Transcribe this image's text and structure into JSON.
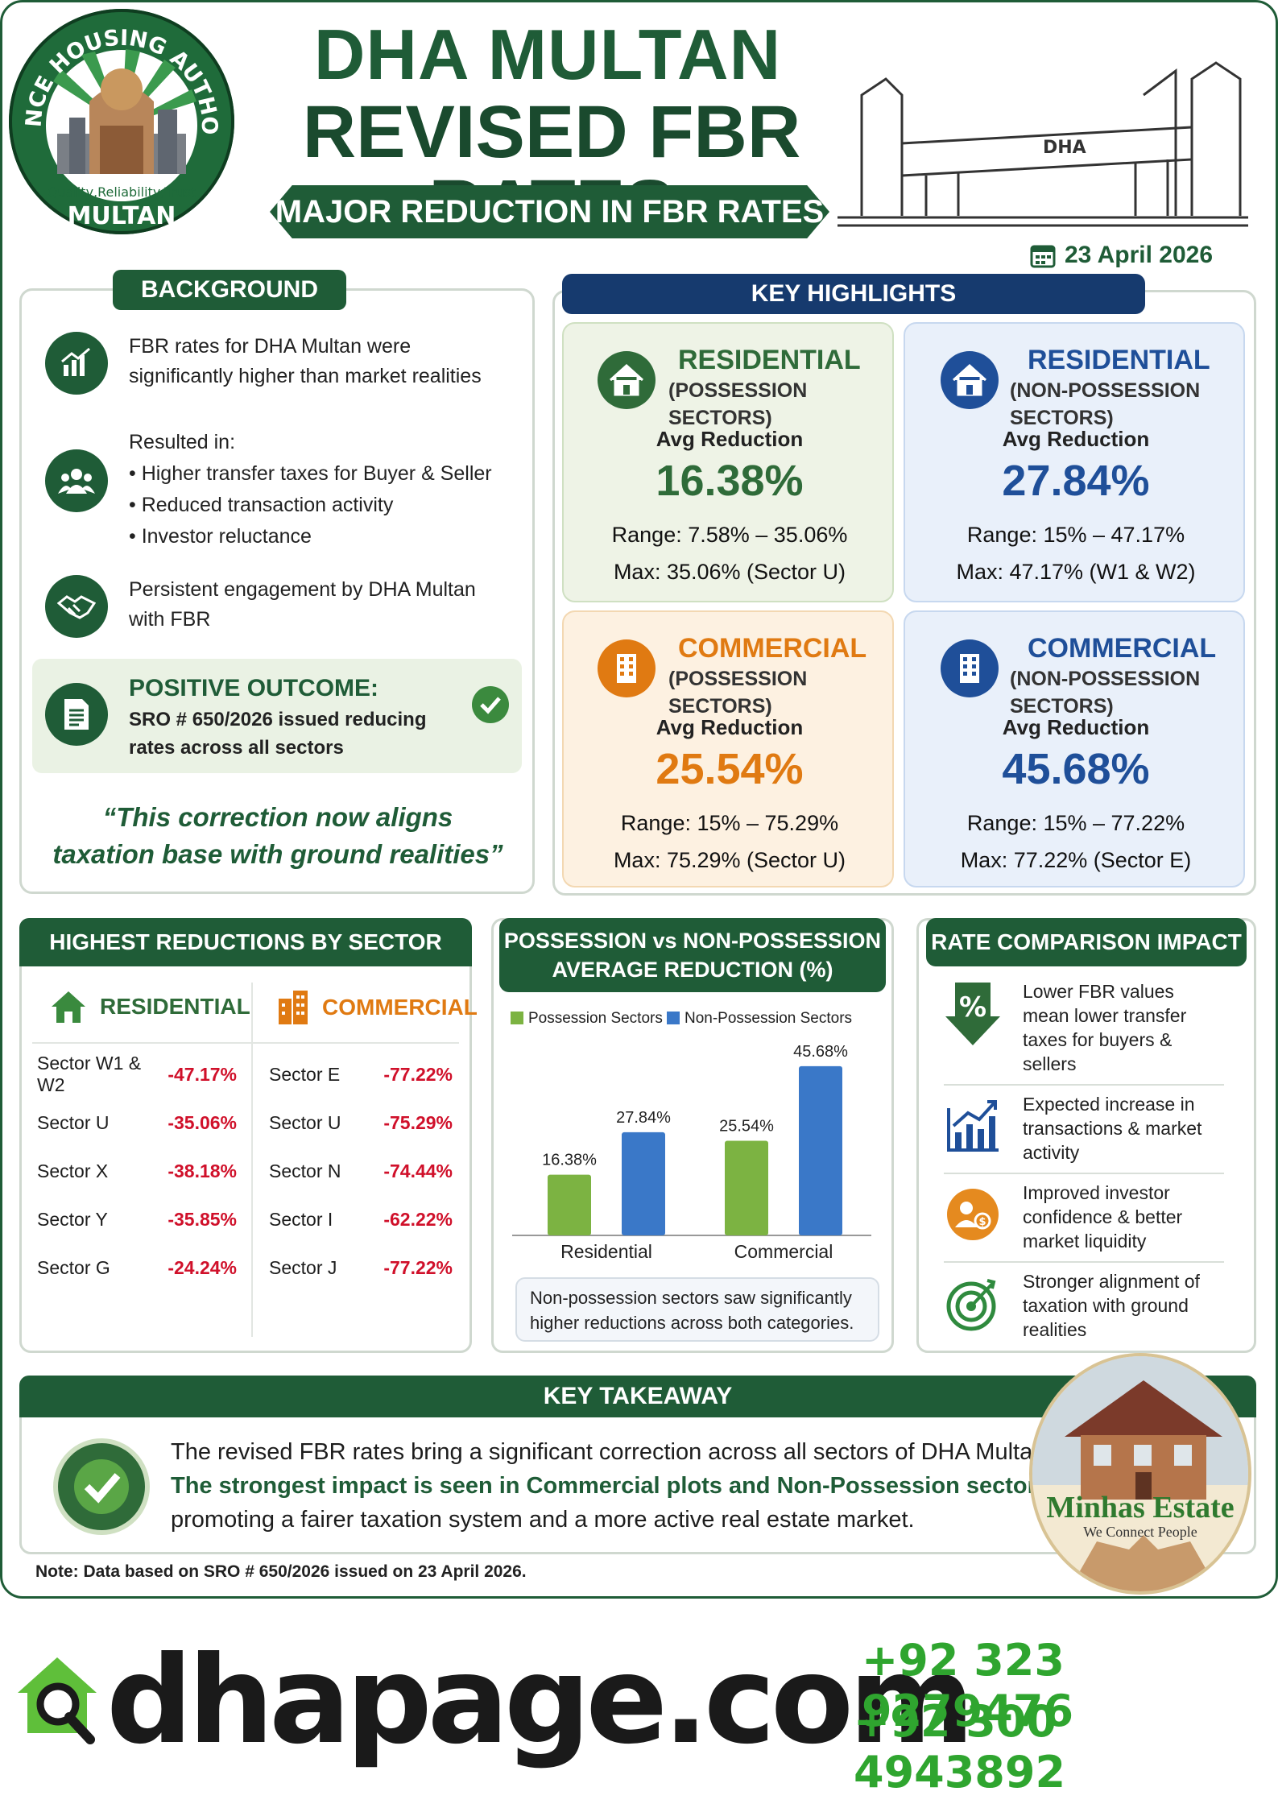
{
  "header": {
    "title_line1": "DHA MULTAN",
    "title_line2": "REVISED FBR RATES",
    "ribbon": "MAJOR REDUCTION IN FBR RATES",
    "date": "23 April 2026",
    "logo_text_top": "DEFENCE HOUSING AUTHORITY",
    "logo_text_bottom": "MULTAN",
    "logo_tagline": "Quality,Reliability,Trust",
    "gate_sign": "DHA"
  },
  "background": {
    "title": "BACKGROUND",
    "item1": "FBR rates for DHA Multan were significantly higher than market realities",
    "item2_intro": "Resulted in:",
    "item2_bullets": [
      "Higher transfer taxes for Buyer & Seller",
      "Reduced transaction activity",
      "Investor reluctance"
    ],
    "item3": "Persistent engagement by DHA Multan with FBR",
    "outcome_title": "POSITIVE OUTCOME:",
    "outcome_text": "SRO # 650/2026 issued reducing rates across all sectors",
    "quote": "“This correction now aligns taxation base with ground realities”"
  },
  "highlights": {
    "title": "KEY HIGHLIGHTS",
    "cards": [
      {
        "title": "RESIDENTIAL",
        "subtitle": "(POSSESSION SECTORS)",
        "avg_label": "Avg Reduction",
        "avg": "16.38%",
        "range": "Range: 7.58% – 35.06%",
        "max": "Max: 35.06% (Sector U)",
        "color": "#2f6b39"
      },
      {
        "title": "RESIDENTIAL",
        "subtitle": "(NON-POSSESSION SECTORS)",
        "avg_label": "Avg Reduction",
        "avg": "27.84%",
        "range": "Range: 15% – 47.17%",
        "max": "Max: 47.17% (W1 & W2)",
        "color": "#1f4f99"
      },
      {
        "title": "COMMERCIAL",
        "subtitle": "(POSSESSION SECTORS)",
        "avg_label": "Avg Reduction",
        "avg": "25.54%",
        "range": "Range: 15% – 75.29%",
        "max": "Max: 75.29% (Sector U)",
        "color": "#e07a12"
      },
      {
        "title": "COMMERCIAL",
        "subtitle": "(NON-POSSESSION SECTORS)",
        "avg_label": "Avg Reduction",
        "avg": "45.68%",
        "range": "Range: 15% – 77.22%",
        "max": "Max: 77.22% (Sector E)",
        "color": "#1f4f99"
      }
    ]
  },
  "sectors": {
    "title": "HIGHEST REDUCTIONS BY SECTOR",
    "residential_label": "RESIDENTIAL",
    "commercial_label": "COMMERCIAL",
    "residential": [
      {
        "sector": "Sector W1 & W2",
        "value": "-47.17%"
      },
      {
        "sector": "Sector U",
        "value": "-35.06%"
      },
      {
        "sector": "Sector X",
        "value": "-38.18%"
      },
      {
        "sector": "Sector Y",
        "value": "-35.85%"
      },
      {
        "sector": "Sector G",
        "value": "-24.24%"
      }
    ],
    "commercial": [
      {
        "sector": "Sector E",
        "value": "-77.22%"
      },
      {
        "sector": "Sector U",
        "value": "-75.29%"
      },
      {
        "sector": "Sector N",
        "value": "-74.44%"
      },
      {
        "sector": "Sector I",
        "value": "-62.22%"
      },
      {
        "sector": "Sector J",
        "value": "-77.22%"
      }
    ]
  },
  "chart_panel": {
    "title_line1": "POSSESSION vs NON-POSSESSION",
    "title_line2": "AVERAGE REDUCTION (%)",
    "note": "Non-possession sectors saw significantly higher reductions across both categories."
  },
  "chart_data": {
    "type": "bar",
    "categories": [
      "Residential",
      "Commercial"
    ],
    "series": [
      {
        "name": "Possession Sectors",
        "values": [
          16.38,
          25.54
        ],
        "labels": [
          "16.38%",
          "25.54%"
        ],
        "color": "#7cb342"
      },
      {
        "name": "Non-Possession Sectors",
        "values": [
          27.84,
          45.68
        ],
        "labels": [
          "27.84%",
          "45.68%"
        ],
        "color": "#3a78c8"
      }
    ],
    "ylim": [
      0,
      50
    ],
    "legend": "top",
    "grid": false
  },
  "impact": {
    "title": "RATE COMPARISON IMPACT",
    "items": [
      {
        "icon": "percent-down-icon",
        "text": "Lower FBR values mean lower transfer taxes for buyers & sellers"
      },
      {
        "icon": "growth-chart-icon",
        "text": "Expected increase in transactions & market activity"
      },
      {
        "icon": "investor-icon",
        "text": "Improved investor confidence & better market liquidity"
      },
      {
        "icon": "target-icon",
        "text": "Stronger alignment of taxation with ground realities"
      }
    ]
  },
  "takeaway": {
    "title": "KEY TAKEAWAY",
    "line1": "The revised FBR rates bring a significant correction across all sectors of DHA Multan.",
    "line2": "The strongest impact is seen in Commercial plots and Non-Possession sectors,",
    "line3": "promoting a fairer taxation system and a more active real estate market."
  },
  "note": "Note: Data based on SRO # 650/2026 issued on 23 April 2026.",
  "estate": {
    "name": "Minhas Estate",
    "tagline": "We Connect People"
  },
  "footer": {
    "site": "dhapage.com",
    "phone1": "+92 323 9279476",
    "phone2": "+92 300 4943892"
  }
}
